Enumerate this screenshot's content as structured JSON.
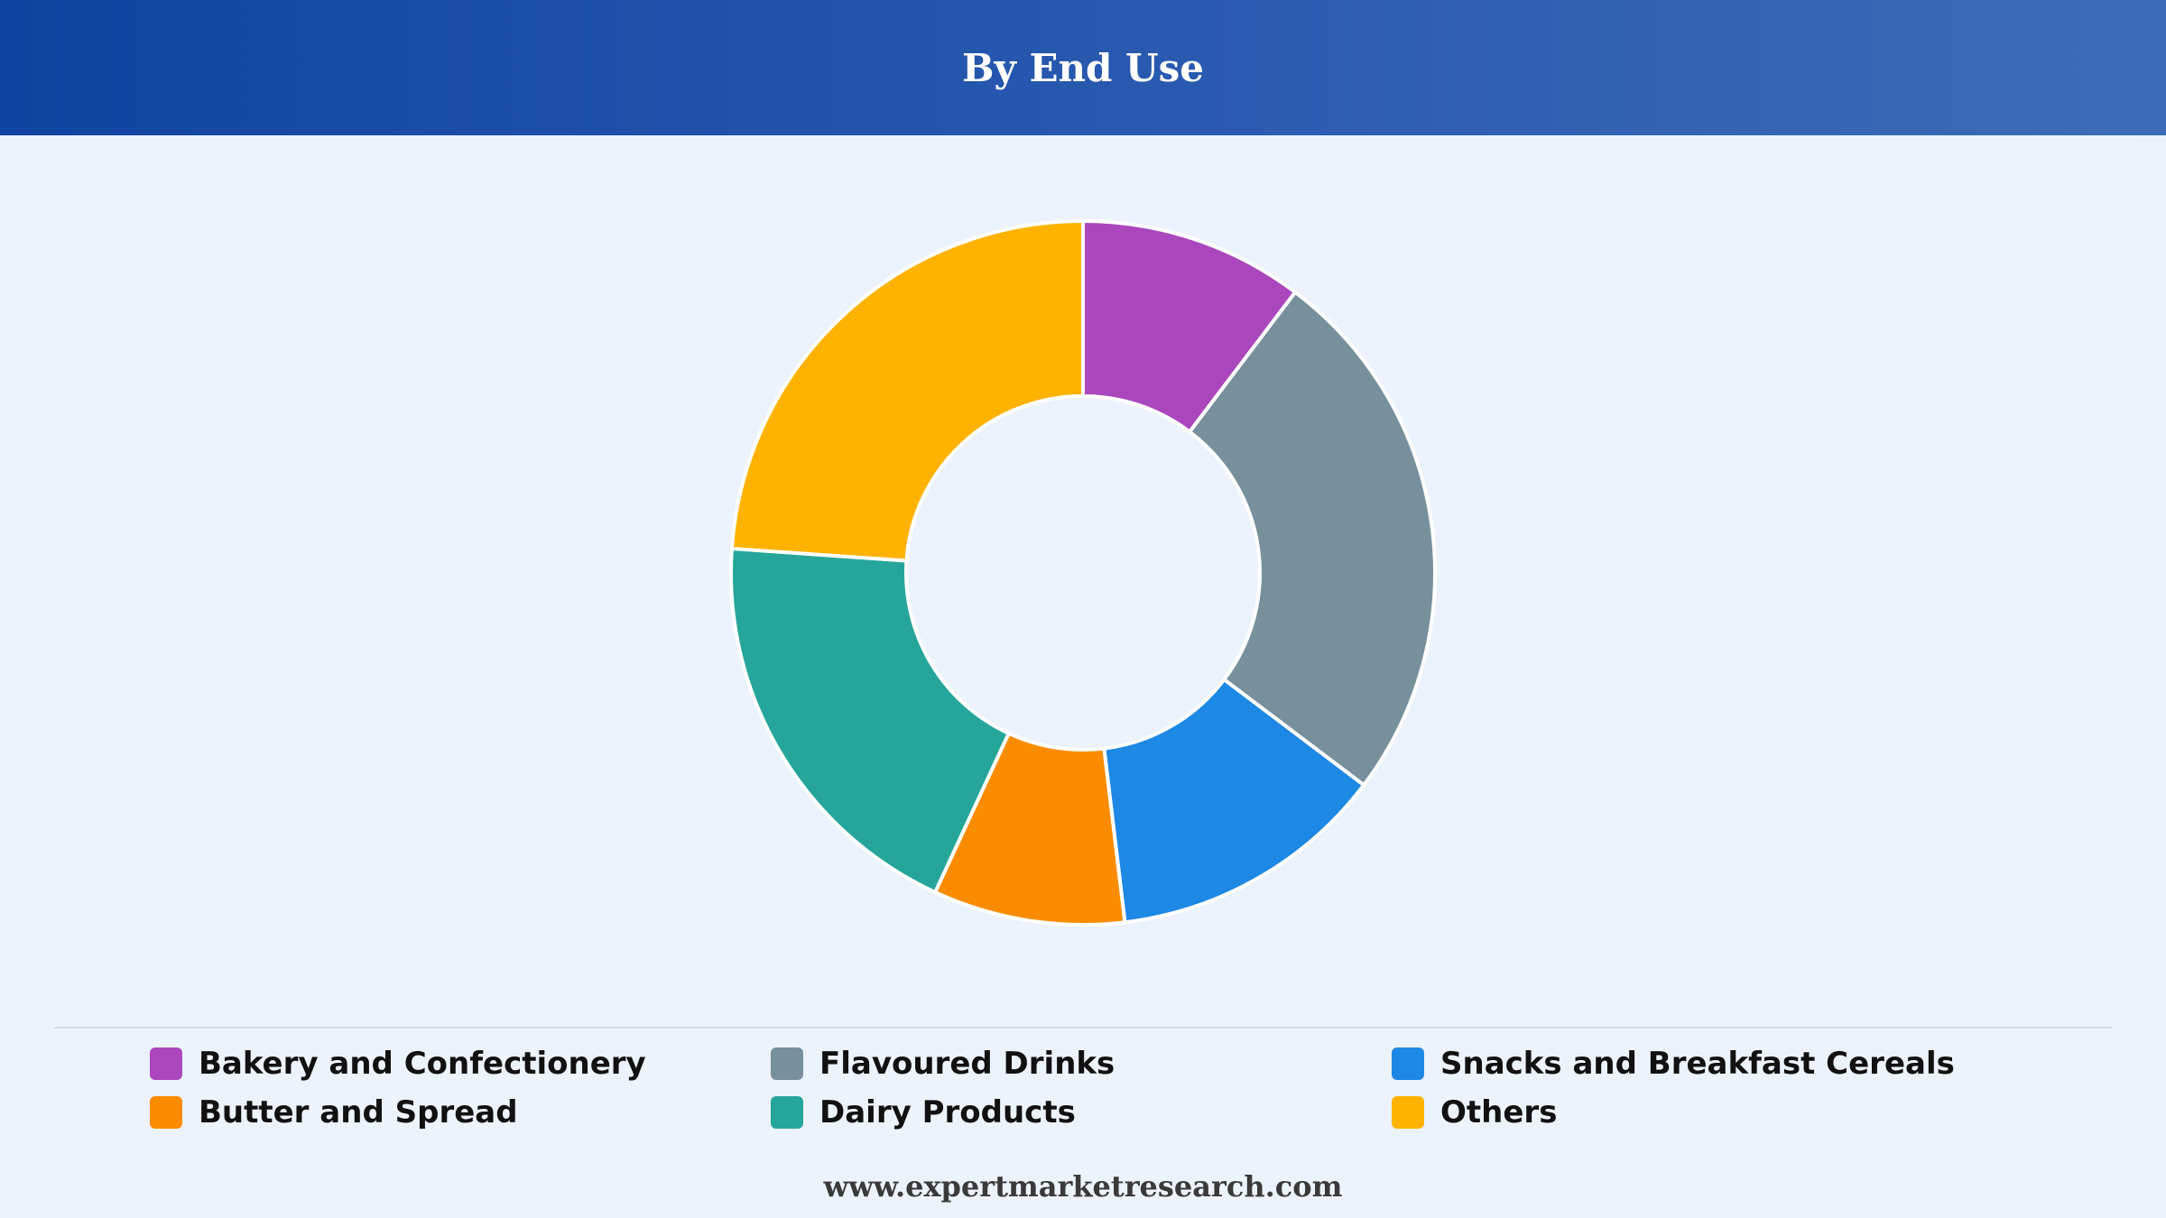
{
  "header": {
    "title": "By End Use"
  },
  "chart_data": {
    "type": "pie",
    "variant": "donut",
    "title": "By End Use",
    "legend_position": "bottom",
    "series": [
      {
        "name": "Bakery and Confectionery",
        "value": 10.3,
        "color": "#ab47bc"
      },
      {
        "name": "Flavoured Drinks",
        "value": 25.0,
        "color": "#78909c"
      },
      {
        "name": "Snacks and Breakfast Cereals",
        "value": 12.8,
        "color": "#1e88e5"
      },
      {
        "name": "Butter and Spread",
        "value": 8.8,
        "color": "#fb8c00"
      },
      {
        "name": "Dairy Products",
        "value": 19.2,
        "color": "#26a69a"
      },
      {
        "name": "Others",
        "value": 23.9,
        "color": "#ffb300"
      }
    ]
  },
  "footer": {
    "source": "www.expertmarketresearch.com"
  }
}
